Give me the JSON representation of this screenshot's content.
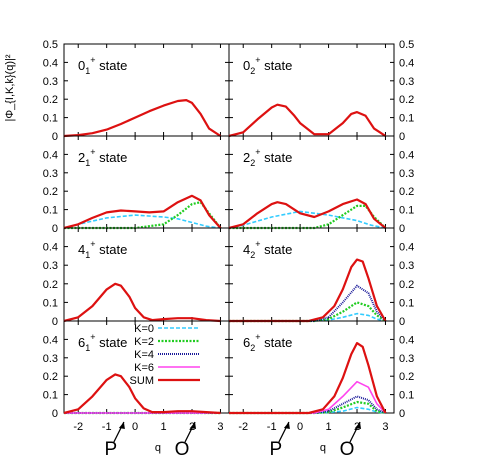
{
  "chart_data": {
    "type": "line",
    "ylabel": "|Φ_{I,K,k}(q)|²",
    "xlabel": "q",
    "x_markers": [
      {
        "label": "P",
        "x": -0.5
      },
      {
        "label": "O",
        "x": 2.0
      }
    ],
    "xlim": [
      -2.5,
      3.3
    ],
    "xticks": [
      -2,
      -1,
      0,
      1,
      2,
      3
    ],
    "ylim": [
      0,
      0.5
    ],
    "yticks": [
      0,
      0.1,
      0.2,
      0.3,
      0.4,
      0.5
    ],
    "colors": {
      "K=0": "#33ccff",
      "K=2": "#22cc22",
      "K=4": "#1a1a99",
      "K=6": "#ff44ee",
      "SUM": "#dd1111"
    },
    "legend": {
      "placement": "panel 6_1+ right",
      "entries": [
        "K=0",
        "K=2",
        "K=4",
        "K=6",
        "SUM"
      ]
    },
    "panels": [
      {
        "title": "0₁⁺ state",
        "position": "row1-left",
        "series": [
          {
            "name": "SUM",
            "x": [
              -2.5,
              -2.0,
              -1.5,
              -1.0,
              -0.5,
              0.0,
              0.5,
              1.0,
              1.5,
              1.8,
              2.0,
              2.3,
              2.6,
              3.0
            ],
            "y": [
              0,
              0.005,
              0.015,
              0.035,
              0.065,
              0.1,
              0.135,
              0.165,
              0.19,
              0.195,
              0.18,
              0.12,
              0.04,
              0
            ]
          }
        ]
      },
      {
        "title": "0₂⁺ state",
        "position": "row1-right",
        "series": [
          {
            "name": "SUM",
            "x": [
              -2.5,
              -2.0,
              -1.5,
              -1.0,
              -0.8,
              -0.5,
              -0.2,
              0.0,
              0.5,
              1.0,
              1.5,
              1.8,
              2.0,
              2.3,
              2.6,
              3.0
            ],
            "y": [
              0,
              0.02,
              0.09,
              0.155,
              0.17,
              0.16,
              0.11,
              0.07,
              0.01,
              0.01,
              0.07,
              0.12,
              0.13,
              0.11,
              0.04,
              0
            ]
          }
        ]
      },
      {
        "title": "2₁⁺ state",
        "position": "row2-left",
        "series": [
          {
            "name": "K=0",
            "x": [
              -2.5,
              -2.0,
              -1.0,
              0.0,
              1.0,
              1.5,
              2.0,
              2.5,
              3.0
            ],
            "y": [
              0,
              0.02,
              0.055,
              0.07,
              0.06,
              0.05,
              0.03,
              0.01,
              0
            ]
          },
          {
            "name": "K=2",
            "x": [
              -2.5,
              0.0,
              1.0,
              1.5,
              2.0,
              2.3,
              2.6,
              3.0
            ],
            "y": [
              0,
              0,
              0.02,
              0.07,
              0.13,
              0.14,
              0.08,
              0
            ]
          },
          {
            "name": "SUM",
            "x": [
              -2.5,
              -2.0,
              -1.5,
              -1.0,
              -0.5,
              0.0,
              0.5,
              1.0,
              1.5,
              2.0,
              2.3,
              2.6,
              3.0
            ],
            "y": [
              0,
              0.02,
              0.055,
              0.085,
              0.095,
              0.09,
              0.085,
              0.09,
              0.14,
              0.175,
              0.15,
              0.07,
              0
            ]
          }
        ]
      },
      {
        "title": "2₂⁺ state",
        "position": "row2-right",
        "series": [
          {
            "name": "K=0",
            "x": [
              -2.5,
              -2.0,
              -1.0,
              0.0,
              1.0,
              2.0,
              2.5,
              3.0
            ],
            "y": [
              0,
              0.015,
              0.06,
              0.09,
              0.07,
              0.04,
              0.015,
              0
            ]
          },
          {
            "name": "K=2",
            "x": [
              -2.5,
              0.5,
              1.0,
              1.5,
              2.0,
              2.3,
              2.6,
              3.0
            ],
            "y": [
              0,
              0,
              0.02,
              0.07,
              0.12,
              0.12,
              0.06,
              0
            ]
          },
          {
            "name": "SUM",
            "x": [
              -2.5,
              -2.0,
              -1.5,
              -1.0,
              -0.8,
              -0.5,
              0.0,
              0.5,
              1.0,
              1.5,
              2.0,
              2.3,
              2.6,
              3.0
            ],
            "y": [
              0,
              0.02,
              0.08,
              0.13,
              0.14,
              0.13,
              0.08,
              0.06,
              0.09,
              0.13,
              0.155,
              0.13,
              0.05,
              0
            ]
          }
        ]
      },
      {
        "title": "4₁⁺ state",
        "position": "row3-left",
        "series": [
          {
            "name": "SUM",
            "x": [
              -2.5,
              -2.0,
              -1.5,
              -1.0,
              -0.7,
              -0.5,
              -0.2,
              0.0,
              0.3,
              0.6,
              1.0,
              1.5,
              2.0,
              2.5,
              3.0
            ],
            "y": [
              0,
              0.02,
              0.08,
              0.17,
              0.2,
              0.19,
              0.13,
              0.07,
              0.02,
              0.005,
              0.01,
              0.015,
              0.015,
              0.005,
              0
            ]
          }
        ]
      },
      {
        "title": "4₂⁺ state",
        "position": "row3-right",
        "series": [
          {
            "name": "K=0",
            "x": [
              -2.5,
              0.5,
              1.0,
              1.5,
              2.0,
              2.4,
              2.7,
              3.0
            ],
            "y": [
              0,
              0,
              0.005,
              0.02,
              0.04,
              0.03,
              0.01,
              0
            ]
          },
          {
            "name": "K=2",
            "x": [
              -2.5,
              0.5,
              1.0,
              1.5,
              2.0,
              2.4,
              2.7,
              3.0
            ],
            "y": [
              0,
              0,
              0.01,
              0.05,
              0.1,
              0.08,
              0.03,
              0
            ]
          },
          {
            "name": "K=4",
            "x": [
              -2.5,
              0.5,
              1.0,
              1.5,
              2.0,
              2.4,
              2.7,
              3.0
            ],
            "y": [
              0,
              0,
              0.02,
              0.1,
              0.19,
              0.15,
              0.05,
              0
            ]
          },
          {
            "name": "SUM",
            "x": [
              -2.5,
              0.3,
              0.8,
              1.2,
              1.5,
              1.8,
              2.0,
              2.2,
              2.4,
              2.7,
              3.0
            ],
            "y": [
              0,
              0,
              0.02,
              0.08,
              0.17,
              0.29,
              0.33,
              0.32,
              0.23,
              0.08,
              0
            ]
          }
        ]
      },
      {
        "title": "6₁⁺ state",
        "position": "row4-left",
        "series": [
          {
            "name": "K=0",
            "x": [
              -2.5,
              3.0
            ],
            "y": [
              0,
              0
            ]
          },
          {
            "name": "K=2",
            "x": [
              -2.5,
              3.0
            ],
            "y": [
              0,
              0
            ]
          },
          {
            "name": "K=4",
            "x": [
              -2.5,
              3.0
            ],
            "y": [
              0,
              0
            ]
          },
          {
            "name": "K=6",
            "x": [
              -2.5,
              3.0
            ],
            "y": [
              0,
              0
            ]
          },
          {
            "name": "SUM",
            "x": [
              -2.5,
              -2.0,
              -1.5,
              -1.0,
              -0.7,
              -0.5,
              -0.2,
              0.0,
              0.3,
              0.6,
              1.0,
              1.5,
              2.0,
              2.5,
              3.0
            ],
            "y": [
              0,
              0.02,
              0.09,
              0.18,
              0.21,
              0.2,
              0.14,
              0.08,
              0.025,
              0.005,
              0.005,
              0.01,
              0.01,
              0.005,
              0
            ]
          }
        ]
      },
      {
        "title": "6₂⁺ state",
        "position": "row4-right",
        "series": [
          {
            "name": "K=0",
            "x": [
              -2.5,
              0.5,
              1.0,
              1.5,
              2.0,
              2.4,
              2.7,
              3.0
            ],
            "y": [
              0,
              0,
              0.003,
              0.01,
              0.03,
              0.02,
              0.005,
              0
            ]
          },
          {
            "name": "K=2",
            "x": [
              -2.5,
              0.5,
              1.0,
              1.5,
              2.0,
              2.4,
              2.7,
              3.0
            ],
            "y": [
              0,
              0,
              0.005,
              0.03,
              0.06,
              0.05,
              0.01,
              0
            ]
          },
          {
            "name": "K=4",
            "x": [
              -2.5,
              0.5,
              1.0,
              1.5,
              2.0,
              2.4,
              2.7,
              3.0
            ],
            "y": [
              0,
              0,
              0.01,
              0.05,
              0.09,
              0.07,
              0.02,
              0
            ]
          },
          {
            "name": "K=6",
            "x": [
              -2.5,
              0.5,
              1.0,
              1.5,
              2.0,
              2.4,
              2.7,
              3.0
            ],
            "y": [
              0,
              0,
              0.02,
              0.09,
              0.17,
              0.14,
              0.05,
              0
            ]
          },
          {
            "name": "SUM",
            "x": [
              -2.5,
              0.3,
              0.8,
              1.2,
              1.5,
              1.8,
              2.0,
              2.2,
              2.4,
              2.7,
              3.0
            ],
            "y": [
              0,
              0,
              0.02,
              0.09,
              0.19,
              0.32,
              0.38,
              0.36,
              0.26,
              0.09,
              0
            ]
          }
        ]
      }
    ]
  }
}
